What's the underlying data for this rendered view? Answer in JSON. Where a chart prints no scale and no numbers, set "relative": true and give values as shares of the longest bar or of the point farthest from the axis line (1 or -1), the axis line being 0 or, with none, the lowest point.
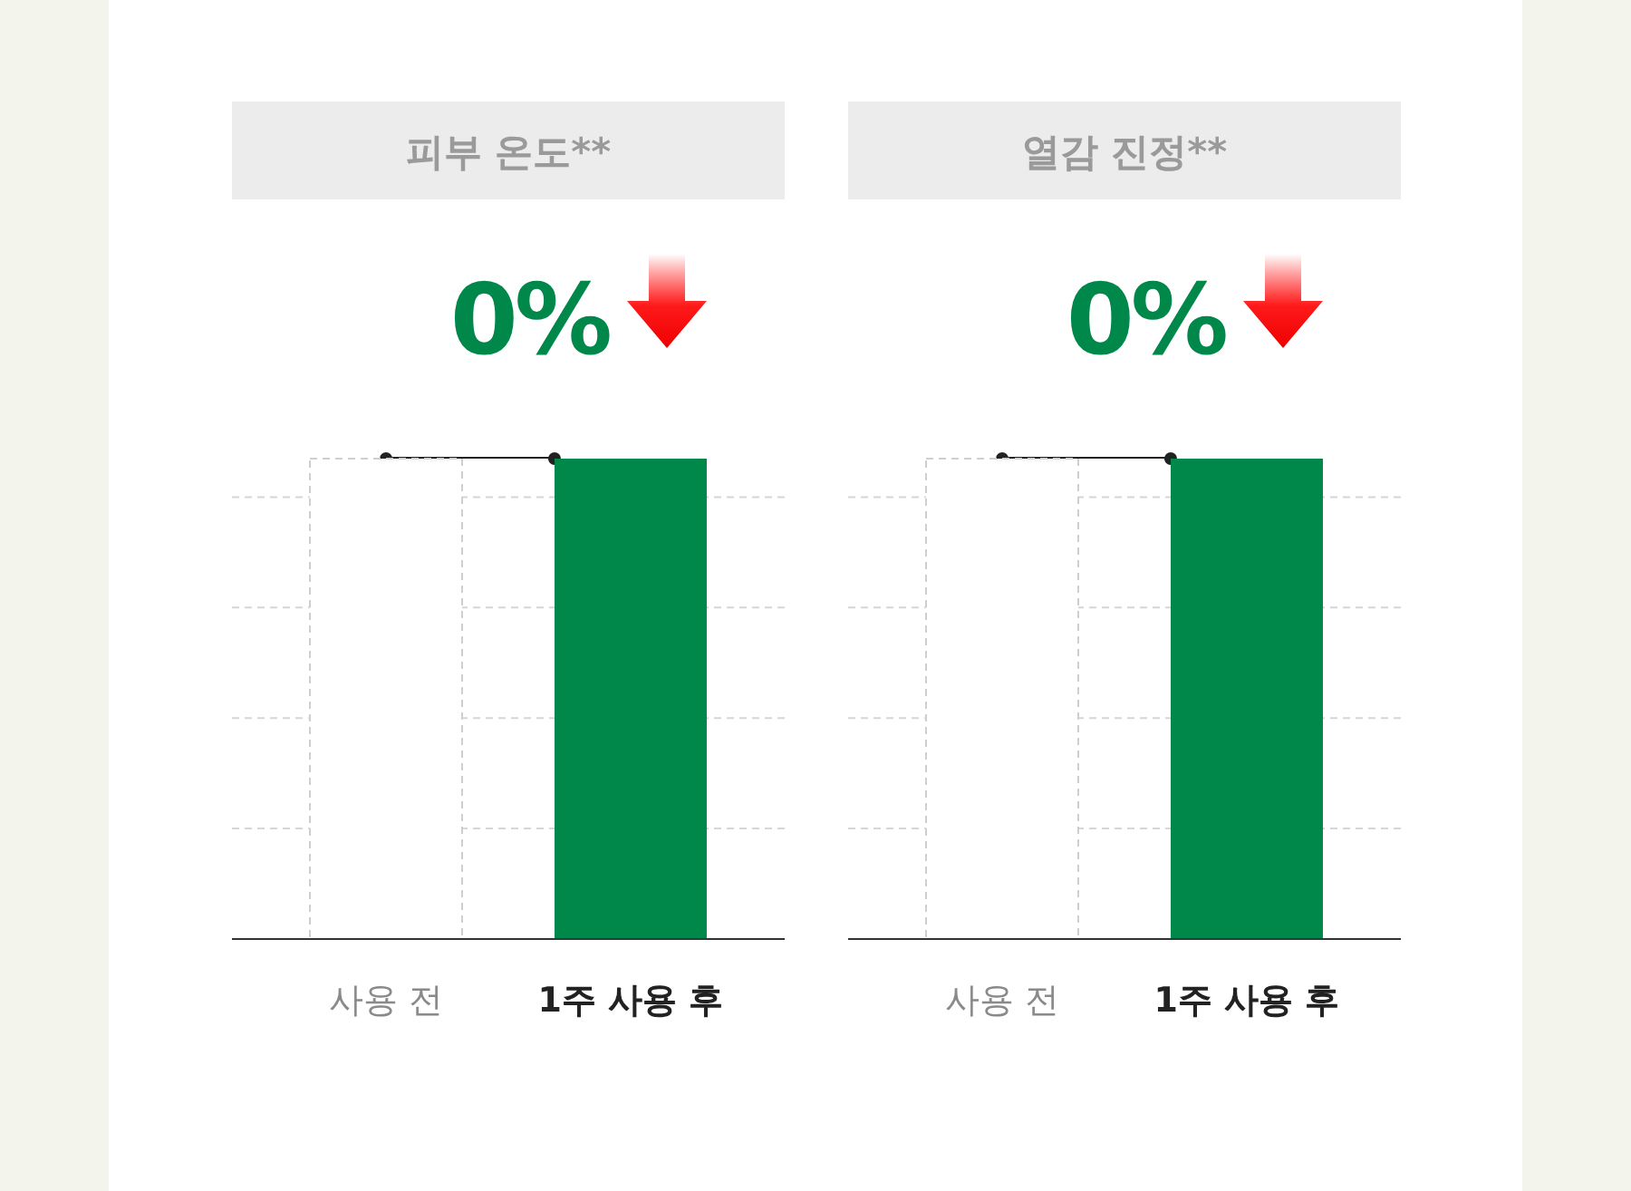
{
  "chart_data": [
    {
      "type": "bar",
      "title": "피부 온도**",
      "categories": [
        "사용 전",
        "1주 사용 후"
      ],
      "values": [
        1,
        1
      ],
      "colors": [
        "#ffffff",
        "#00874a"
      ],
      "relative": true,
      "grid": "y",
      "annotations": [
        "0%"
      ]
    },
    {
      "type": "bar",
      "title": "열감 진정**",
      "categories": [
        "사용 전",
        "1주 사용 후"
      ],
      "values": [
        1,
        1
      ],
      "colors": [
        "#ffffff",
        "#00874a"
      ],
      "relative": true,
      "grid": "y",
      "annotations": [
        "0%"
      ]
    }
  ]
}
